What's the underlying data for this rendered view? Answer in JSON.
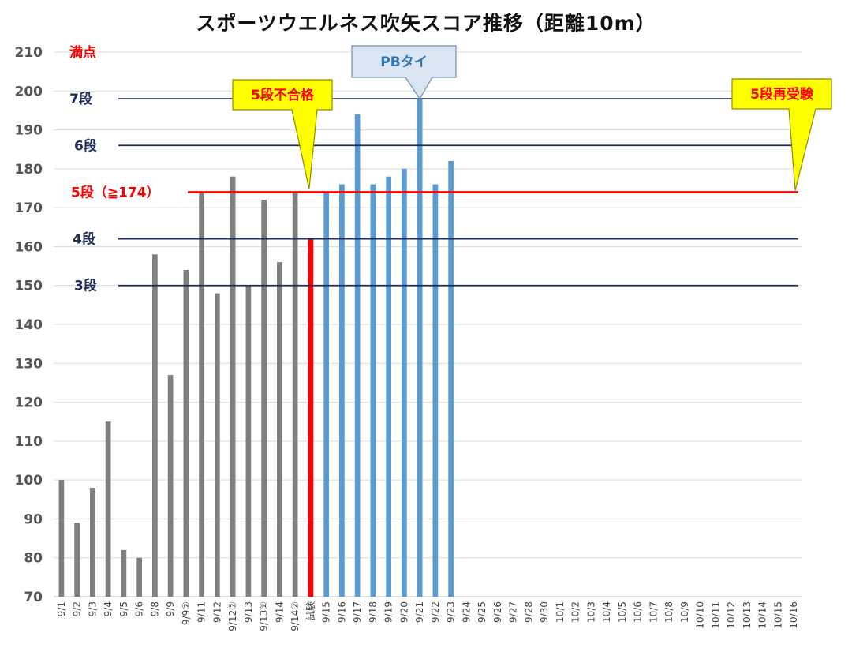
{
  "chart_data": {
    "type": "bar",
    "title": "スポーツウエルネス吹矢スコア推移（距離10m）",
    "xlabel": "",
    "ylabel": "",
    "ylim": [
      70,
      210
    ],
    "yticks": [
      70,
      80,
      90,
      100,
      110,
      120,
      130,
      140,
      150,
      160,
      170,
      180,
      190,
      200,
      210
    ],
    "grid": true,
    "categories": [
      "9/1",
      "9/2",
      "9/3",
      "9/4",
      "9/5",
      "9/6",
      "9/8",
      "9/9",
      "9/9②",
      "9/11",
      "9/12",
      "9/12②",
      "9/13",
      "9/13②",
      "9/14",
      "9/14②",
      "試験",
      "9/15",
      "9/16",
      "9/17",
      "9/18",
      "9/19",
      "9/20",
      "9/21",
      "9/22",
      "9/23",
      "9/24",
      "9/25",
      "9/26",
      "9/27",
      "9/28",
      "9/30",
      "10/1",
      "10/2",
      "10/3",
      "10/4",
      "10/5",
      "10/6",
      "10/7",
      "10/8",
      "10/9",
      "10/10",
      "10/11",
      "10/12",
      "10/13",
      "10/14",
      "10/15",
      "10/16"
    ],
    "values": [
      100,
      89,
      98,
      115,
      82,
      80,
      158,
      127,
      154,
      174,
      148,
      178,
      150,
      172,
      156,
      174,
      162,
      174,
      176,
      194,
      176,
      178,
      180,
      198,
      176,
      182,
      null,
      null,
      null,
      null,
      null,
      null,
      null,
      null,
      null,
      null,
      null,
      null,
      null,
      null,
      null,
      null,
      null,
      null,
      null,
      null,
      null,
      null
    ],
    "bar_groups": [
      {
        "from": 0,
        "to": 15,
        "color": "#7f7f7f"
      },
      {
        "from": 16,
        "to": 16,
        "color": "#ff0000"
      },
      {
        "from": 17,
        "to": 47,
        "color": "#5b9bd5"
      }
    ],
    "reference_lines": [
      {
        "label": "満点",
        "value": 210,
        "color": "#ff0000",
        "line": false
      },
      {
        "label": "7段",
        "value": 198,
        "color": "#1f2d5a",
        "line": true
      },
      {
        "label": "6段",
        "value": 186,
        "color": "#1f2d5a",
        "line": true
      },
      {
        "label": "5段（≧174）",
        "value": 174,
        "color": "#ff0000",
        "line": true
      },
      {
        "label": "4段",
        "value": 162,
        "color": "#1f2d5a",
        "line": true
      },
      {
        "label": "3段",
        "value": 150,
        "color": "#1f2d5a",
        "line": true
      }
    ],
    "annotations": [
      {
        "text": "5段不合格",
        "style": "yellow",
        "point_category": "試験"
      },
      {
        "text": "PBタイ",
        "style": "blue",
        "point_category": "9/21"
      },
      {
        "text": "5段再受験",
        "style": "yellow",
        "point_category": "10/16"
      }
    ]
  }
}
